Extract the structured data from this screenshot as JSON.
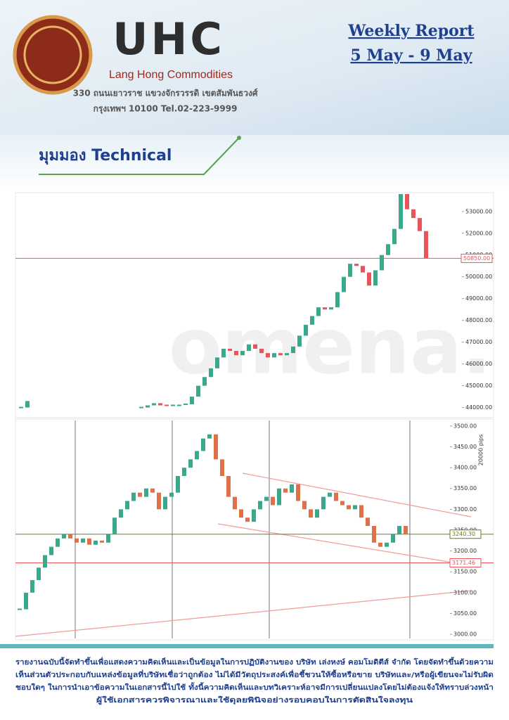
{
  "header": {
    "logo": "UHC",
    "company": "Lang Hong Commodities",
    "address": [
      "330 ถนนเยาวราช แขวงจักรวรรดิ เขตสัมพันธวงศ์",
      "กรุงเทพฯ 10100 Tel.02-223-9999"
    ],
    "report_title": "Weekly Report",
    "date_range": "5 May - 9 May"
  },
  "section_title": "มุมมอง Technical",
  "chart_data": [
    {
      "type": "candlestick",
      "watermark": "omena.",
      "up_color": "#3aa88a",
      "down_color": "#e8545a",
      "values": [
        44000,
        44300,
        null,
        null,
        null,
        null,
        null,
        null,
        null,
        null,
        null,
        null,
        null,
        null,
        null,
        null,
        null,
        null,
        null,
        44000,
        44100,
        44200,
        44100,
        44050,
        44100,
        44100,
        44150,
        44500,
        45000,
        45400,
        45800,
        46300,
        46700,
        46600,
        46400,
        46600,
        46900,
        46700,
        46500,
        46300,
        46500,
        46400,
        46500,
        46800,
        47300,
        47800,
        48200,
        48600,
        48500,
        48600,
        49300,
        50000,
        50600,
        50500,
        50200,
        49600,
        50300,
        51000,
        51500,
        52200,
        53800,
        53100,
        52700,
        52100,
        50850
      ],
      "ylim": [
        43600,
        53800
      ],
      "yticks": [
        {
          "value": 44000,
          "label": "44000.00"
        },
        {
          "value": 45000,
          "label": "45000.00"
        },
        {
          "value": 46000,
          "label": "46000.00"
        },
        {
          "value": 47000,
          "label": "47000.00"
        },
        {
          "value": 48000,
          "label": "48000.00"
        },
        {
          "value": 49000,
          "label": "49000.00"
        },
        {
          "value": 50000,
          "label": "50000.00"
        },
        {
          "value": 51000,
          "label": "51000.00"
        },
        {
          "value": 52000,
          "label": "52000.00"
        },
        {
          "value": 53000,
          "label": "53000.00"
        }
      ],
      "price_lines": [
        {
          "value": 50850,
          "label": "50850.00",
          "color": "#e8545a"
        }
      ]
    },
    {
      "type": "candlestick",
      "annotation": "20000 pips",
      "up_color": "#3aa88a",
      "down_color": "#e07048",
      "values": [
        3060,
        3100,
        3130,
        3160,
        3190,
        3210,
        3230,
        3240,
        3230,
        3220,
        3230,
        3215,
        3225,
        3220,
        3240,
        3280,
        3300,
        3320,
        3340,
        3330,
        3350,
        3340,
        3300,
        3330,
        3340,
        3380,
        3400,
        3420,
        3440,
        3470,
        3480,
        3420,
        3380,
        3330,
        3300,
        3280,
        3270,
        3300,
        3320,
        3330,
        3310,
        3350,
        3340,
        3360,
        3320,
        3300,
        3280,
        3300,
        3330,
        3340,
        3320,
        3310,
        3300,
        3310,
        3280,
        3260,
        3220,
        3210,
        3220,
        3240,
        3260,
        3240
      ],
      "ylim": [
        2990,
        3515
      ],
      "yticks": [
        {
          "value": 3000,
          "label": "3000.00"
        },
        {
          "value": 3050,
          "label": "3050.00"
        },
        {
          "value": 3100,
          "label": "3100.00"
        },
        {
          "value": 3150,
          "label": "3150.00"
        },
        {
          "value": 3200,
          "label": "3200.00"
        },
        {
          "value": 3250,
          "label": "3250.00"
        },
        {
          "value": 3300,
          "label": "3300.00"
        },
        {
          "value": 3350,
          "label": "3350.00"
        },
        {
          "value": 3400,
          "label": "3400.00"
        },
        {
          "value": 3450,
          "label": "3450.00"
        },
        {
          "value": 3500,
          "label": "3500.00"
        }
      ],
      "price_lines": [
        {
          "value": 3240.3,
          "label": "3240.30",
          "color": "#6b7a1e"
        },
        {
          "value": 3171.46,
          "label": "3171.46",
          "color": "#e8545a"
        }
      ]
    }
  ],
  "disclaimer": [
    "รายงานฉบับนี้จัดทำขึ้นเพื่อแสดงความคิดเห็นและเป็นข้อมูลในการปฏิบัติงานของ บริษัท เล่งหงษ์ คอมโมดิตีส์ จำกัด โดยจัดทำขึ้นด้วยความ",
    "เห็นส่วนตัวประกอบกับแหล่งข้อมูลที่บริษัทเชื่อว่าถูกต้อง ไม่ได้มีวัตถุประสงค์เพื่อชี้ชวนให้ซื้อหรือขาย บริษัทและ/หรือผู้เขียนจะไม่รับผิด",
    "ชอบใดๆ ในการนำเอาข้อความในเอกสารนี้ไปใช้ ทั้งนี้ความคิดเห็นและบทวิเคราะห์อาจมีการเปลี่ยนแปลงโดยไม่ต้องแจ้งให้ทราบล่วงหน้า",
    "ผู้ใช้เอกสารควรพิจารณาและใช้ดุลยพินิจอย่างรอบคอบในการตัดสินใจลงทุน"
  ]
}
